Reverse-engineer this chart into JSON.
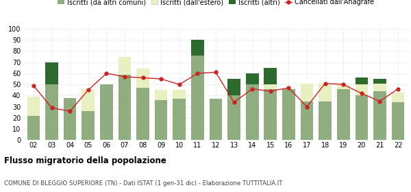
{
  "years": [
    "02",
    "03",
    "04",
    "05",
    "06",
    "07",
    "08",
    "09",
    "10",
    "11",
    "12",
    "13",
    "14",
    "15",
    "16",
    "17",
    "18",
    "19",
    "20",
    "21",
    "22"
  ],
  "iscritti_comuni": [
    22,
    50,
    38,
    26,
    50,
    59,
    47,
    36,
    37,
    76,
    37,
    40,
    50,
    46,
    46,
    35,
    35,
    46,
    40,
    44,
    34
  ],
  "iscritti_estero": [
    17,
    0,
    0,
    20,
    0,
    16,
    17,
    9,
    8,
    0,
    0,
    0,
    0,
    4,
    0,
    16,
    16,
    4,
    10,
    7,
    9
  ],
  "iscritti_altri": [
    0,
    20,
    0,
    0,
    0,
    0,
    0,
    0,
    0,
    14,
    0,
    15,
    10,
    15,
    0,
    0,
    0,
    0,
    6,
    4,
    0
  ],
  "cancellati": [
    49,
    29,
    26,
    45,
    60,
    57,
    56,
    55,
    50,
    60,
    61,
    34,
    46,
    44,
    47,
    30,
    51,
    50,
    42,
    35,
    46
  ],
  "color_comuni": "#8fad7f",
  "color_estero": "#e8efc0",
  "color_altri": "#2d6a2d",
  "color_cancellati": "#cc2222",
  "title": "Flusso migratorio della popolazione",
  "subtitle": "COMUNE DI BLEGGIO SUPERIORE (TN) - Dati ISTAT (1 gen-31 dic) - Elaborazione TUTTITALIA.IT",
  "legend_labels": [
    "Iscritti (da altri comuni)",
    "Iscritti (dall'estero)",
    "Iscritti (altri)",
    "Cancellati dall'Anagrafe"
  ],
  "ylim": [
    0,
    100
  ],
  "yticks": [
    0,
    10,
    20,
    30,
    40,
    50,
    60,
    70,
    80,
    90,
    100
  ],
  "background_color": "#ffffff",
  "grid_color": "#cccccc"
}
